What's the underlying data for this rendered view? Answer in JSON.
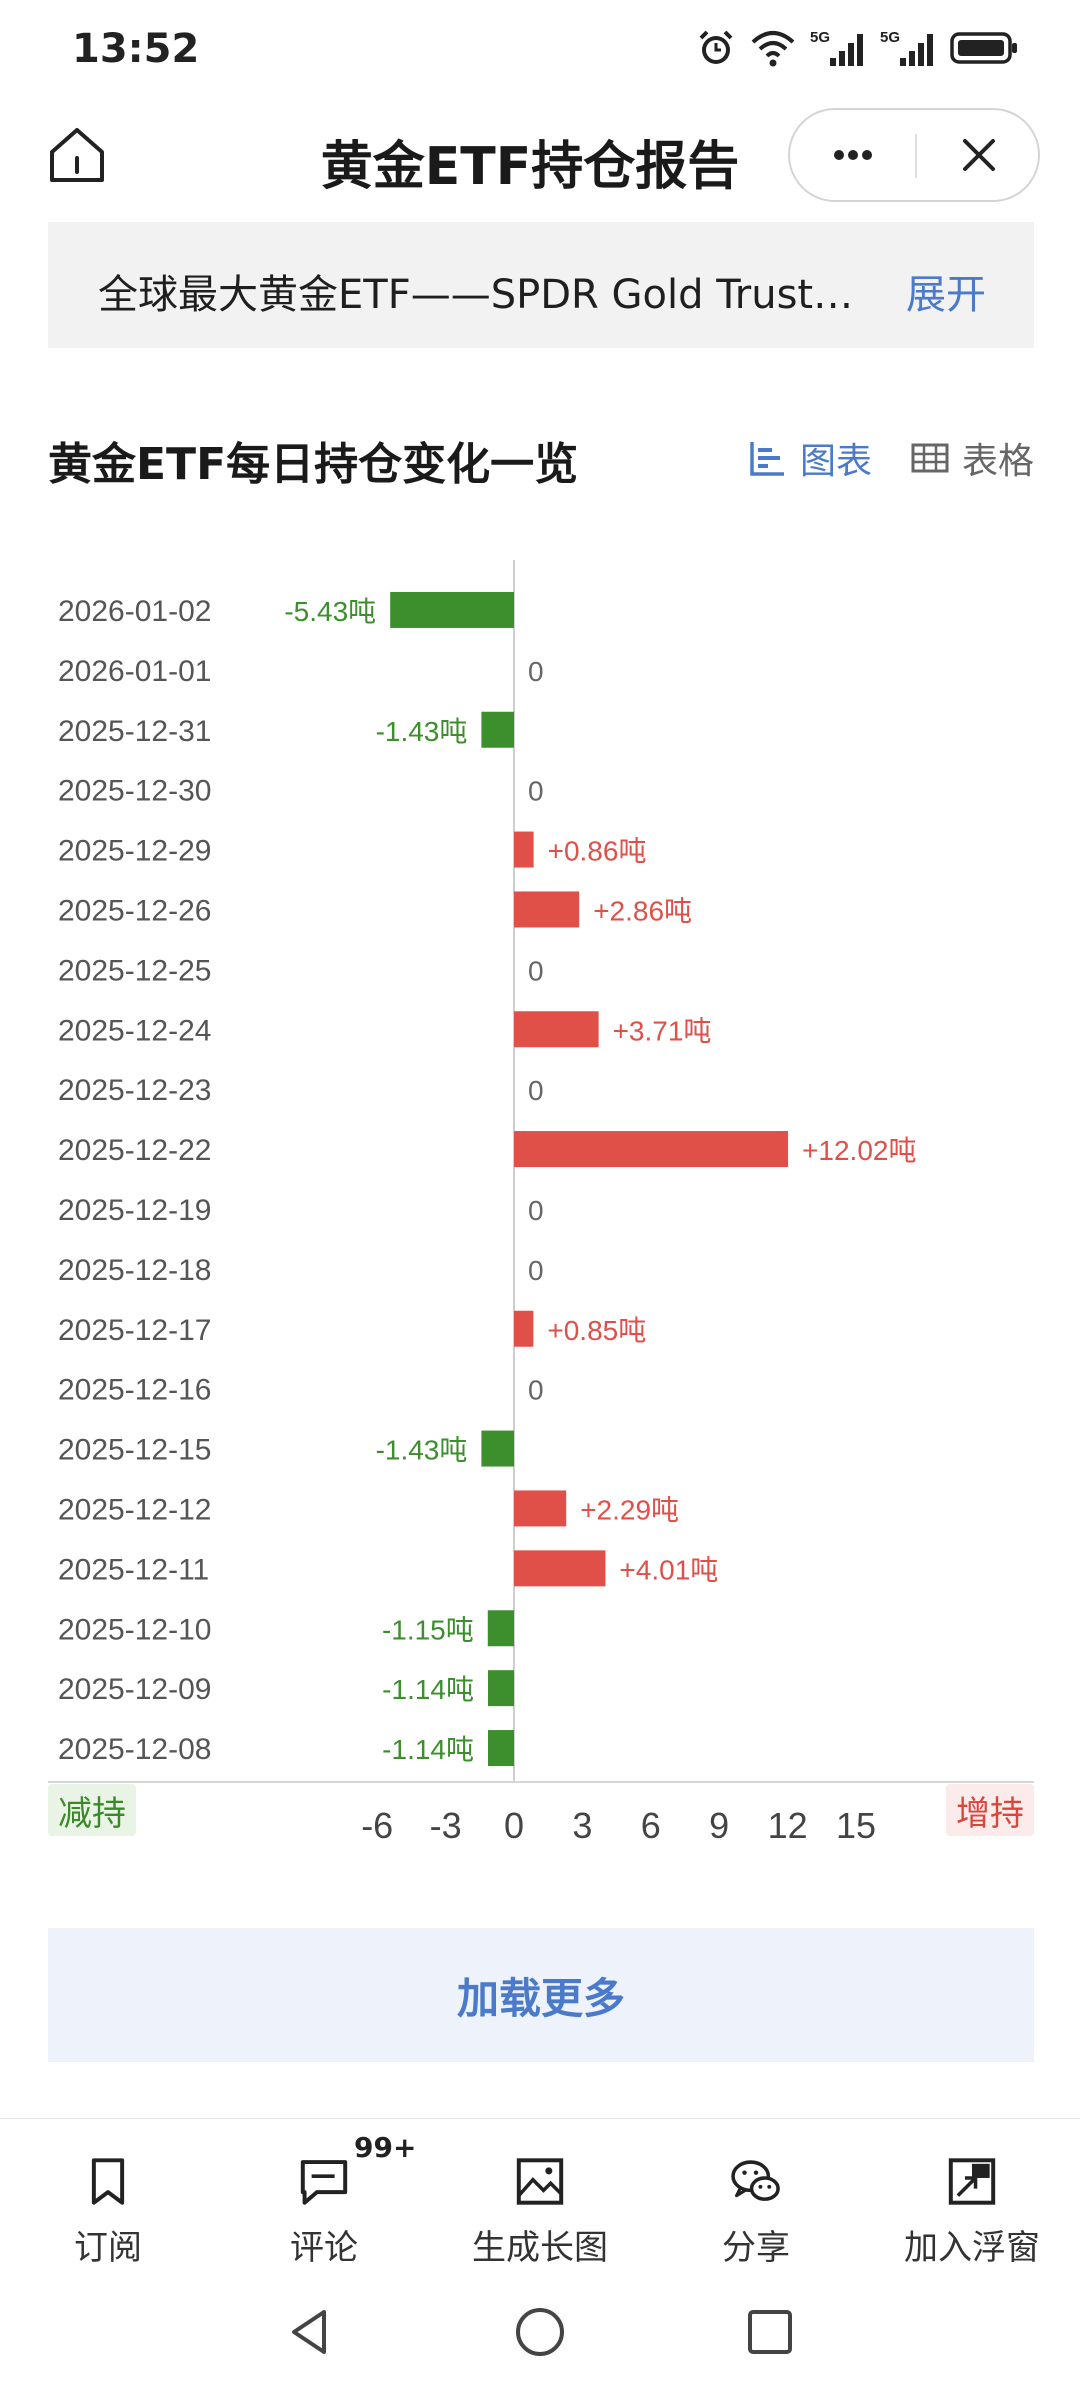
{
  "status_bar": {
    "time": "13:52",
    "icons": [
      "alarm-icon",
      "wifi-icon",
      "signal-5g-icon",
      "signal-5g-icon",
      "battery-icon"
    ],
    "network_label": "5G"
  },
  "title_bar": {
    "title": "黄金ETF持仓报告",
    "home_icon": "home-icon",
    "more_icon": "more-icon",
    "close_icon": "close-icon"
  },
  "notice": {
    "text": "全球最大黄金ETF——SPDR Gold Trust…",
    "expand_label": "展开"
  },
  "section": {
    "title": "黄金ETF每日持仓变化一览",
    "view_chart_label": "图表",
    "view_table_label": "表格"
  },
  "chart_data": {
    "type": "bar",
    "orientation": "horizontal",
    "categories": [
      "2026-01-02",
      "2026-01-01",
      "2025-12-31",
      "2025-12-30",
      "2025-12-29",
      "2025-12-26",
      "2025-12-25",
      "2025-12-24",
      "2025-12-23",
      "2025-12-22",
      "2025-12-19",
      "2025-12-18",
      "2025-12-17",
      "2025-12-16",
      "2025-12-15",
      "2025-12-12",
      "2025-12-11",
      "2025-12-10",
      "2025-12-09",
      "2025-12-08"
    ],
    "values": [
      -5.43,
      0,
      -1.43,
      0,
      0.86,
      2.86,
      0,
      3.71,
      0,
      12.02,
      0,
      0,
      0.85,
      0,
      -1.43,
      2.29,
      4.01,
      -1.15,
      -1.14,
      -1.14
    ],
    "data_labels": [
      "-5.43吨",
      "0",
      "-1.43吨",
      "0",
      "+0.86吨",
      "+2.86吨",
      "0",
      "+3.71吨",
      "0",
      "+12.02吨",
      "0",
      "0",
      "+0.85吨",
      "0",
      "-1.43吨",
      "+2.29吨",
      "+4.01吨",
      "-1.15吨",
      "-1.14吨",
      "-1.14吨"
    ],
    "xlim": [
      -6,
      15
    ],
    "xticks": [
      "-6",
      "-3",
      "0",
      "3",
      "6",
      "9",
      "12",
      "15"
    ],
    "colors": {
      "positive": "#e05048",
      "negative": "#3d8f2e",
      "zero": "#666666"
    },
    "legend_left": "减持",
    "legend_right": "增持",
    "grid": false
  },
  "load_more_label": "加载更多",
  "toolbar": {
    "items": [
      {
        "label": "订阅",
        "icon": "bookmark-icon"
      },
      {
        "label": "评论",
        "icon": "comment-icon",
        "badge": "99+"
      },
      {
        "label": "生成长图",
        "icon": "image-icon"
      },
      {
        "label": "分享",
        "icon": "wechat-icon"
      },
      {
        "label": "加入浮窗",
        "icon": "float-window-icon"
      }
    ]
  },
  "nav_bar": {
    "icons": [
      "back-icon",
      "home-circle-icon",
      "recents-icon"
    ]
  }
}
